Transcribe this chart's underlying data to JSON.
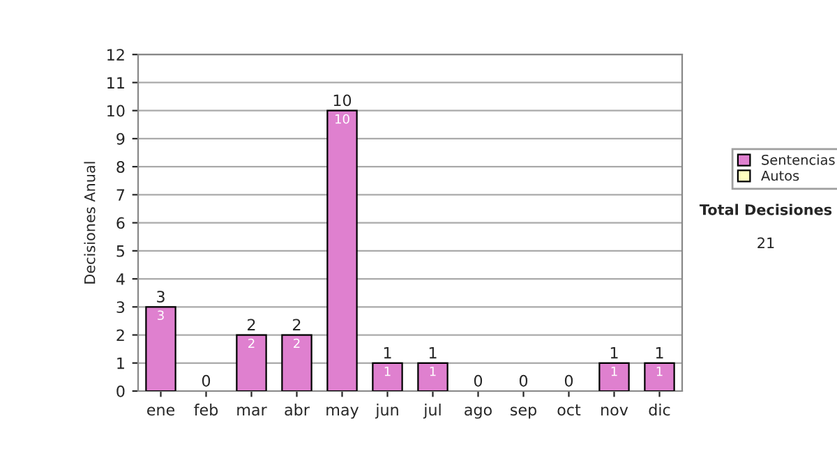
{
  "chart_data": {
    "type": "bar",
    "ylabel": "Decisiones Anual",
    "categories": [
      "ene",
      "feb",
      "mar",
      "abr",
      "may",
      "jun",
      "jul",
      "ago",
      "sep",
      "oct",
      "nov",
      "dic"
    ],
    "series": [
      {
        "name": "Sentencias",
        "color": "#df80cf",
        "values": [
          3,
          0,
          2,
          2,
          10,
          1,
          1,
          0,
          0,
          0,
          1,
          1
        ],
        "value_labels": [
          "3",
          null,
          "2",
          "2",
          "10",
          "1",
          "1",
          null,
          null,
          null,
          "1",
          "1"
        ]
      },
      {
        "name": "Autos",
        "color": "#ffffc0",
        "values": [
          0,
          0,
          0,
          0,
          0,
          0,
          0,
          0,
          0,
          0,
          0,
          0
        ]
      }
    ],
    "stacked": true,
    "totals": [
      "3",
      "0",
      "2",
      "2",
      "10",
      "1",
      "1",
      "0",
      "0",
      "0",
      "1",
      "1"
    ],
    "ylim": [
      0,
      12
    ],
    "yticks": [
      0,
      1,
      2,
      3,
      4,
      5,
      6,
      7,
      8,
      9,
      10,
      11,
      12
    ],
    "grid": "y",
    "legend": "right",
    "annotations": [
      "Total Decisiones",
      "21"
    ]
  }
}
